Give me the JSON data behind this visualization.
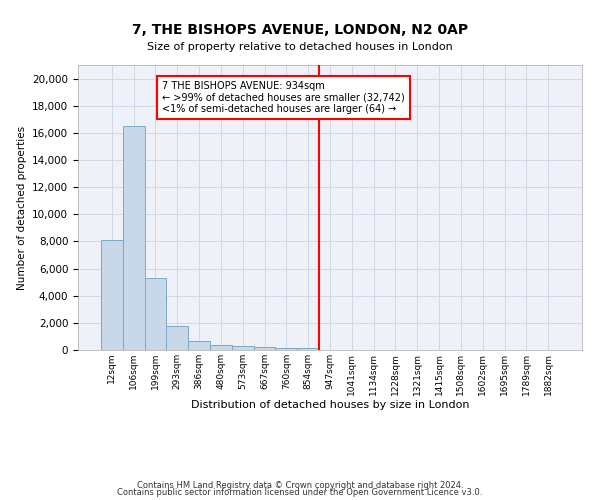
{
  "title": "7, THE BISHOPS AVENUE, LONDON, N2 0AP",
  "subtitle": "Size of property relative to detached houses in London",
  "xlabel": "Distribution of detached houses by size in London",
  "ylabel": "Number of detached properties",
  "bar_labels": [
    "12sqm",
    "106sqm",
    "199sqm",
    "293sqm",
    "386sqm",
    "480sqm",
    "573sqm",
    "667sqm",
    "760sqm",
    "854sqm",
    "947sqm",
    "1041sqm",
    "1134sqm",
    "1228sqm",
    "1321sqm",
    "1415sqm",
    "1508sqm",
    "1602sqm",
    "1695sqm",
    "1789sqm",
    "1882sqm"
  ],
  "bar_heights": [
    8100,
    16500,
    5300,
    1750,
    650,
    350,
    275,
    200,
    175,
    150,
    0,
    0,
    0,
    0,
    0,
    0,
    0,
    0,
    0,
    0,
    0
  ],
  "bar_color": "#c8d8e8",
  "bar_edge_color": "#7aaac8",
  "grid_color": "#d0d8e8",
  "background_color": "#eef2f8",
  "vline_x": 9.5,
  "annotation_text_line1": "7 THE BISHOPS AVENUE: 934sqm",
  "annotation_text_line2": "← >99% of detached houses are smaller (32,742)",
  "annotation_text_line3": "<1% of semi-detached houses are larger (64) →",
  "ylim": [
    0,
    21000
  ],
  "yticks": [
    0,
    2000,
    4000,
    6000,
    8000,
    10000,
    12000,
    14000,
    16000,
    18000,
    20000
  ],
  "footnote_line1": "Contains HM Land Registry data © Crown copyright and database right 2024.",
  "footnote_line2": "Contains public sector information licensed under the Open Government Licence v3.0."
}
